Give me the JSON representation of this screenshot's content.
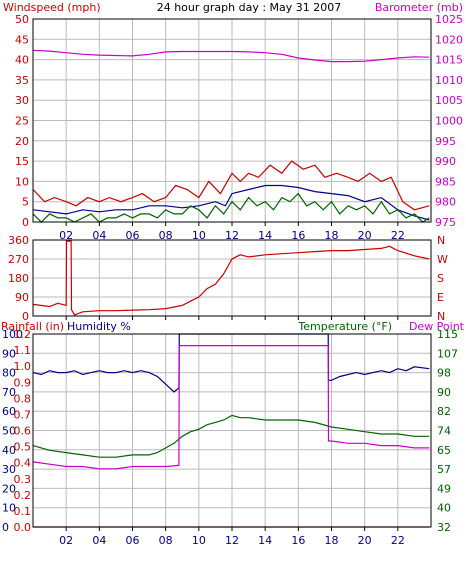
{
  "chart_data": [
    {
      "type": "line",
      "title": "24 hour graph day : May 31 2007",
      "left_axis_label": "Windspeed (mph)",
      "right_axis_label": "Barometer (mb)",
      "colors": {
        "left_axis": "#cc0000",
        "right_axis": "#cc00cc",
        "frame": "#000000",
        "grid": "#bbbbbb"
      },
      "x_range": [
        0,
        24
      ],
      "x_tick_labels": [
        "02",
        "04",
        "06",
        "08",
        "10",
        "12",
        "14",
        "16",
        "18",
        "20",
        "22"
      ],
      "left_ticks": [
        0,
        5,
        10,
        15,
        20,
        25,
        30,
        35,
        40,
        45,
        50
      ],
      "ylim": [
        0,
        50
      ],
      "right_ticks": [
        975,
        980,
        985,
        990,
        995,
        1000,
        1005,
        1010,
        1015,
        1020,
        1025
      ],
      "right_ylim": [
        975,
        1025
      ],
      "series": [
        {
          "axis": "right",
          "color": "#cc00cc",
          "x": [
            0,
            1,
            2,
            3,
            4,
            5,
            6,
            7,
            8,
            9,
            10,
            11,
            12,
            13,
            14,
            15,
            16,
            17,
            18,
            19,
            20,
            21,
            22,
            23,
            23.9
          ],
          "y": [
            1017.3,
            1017.1,
            1016.7,
            1016.3,
            1016.1,
            1016,
            1015.9,
            1016.3,
            1016.9,
            1017,
            1017,
            1017,
            1017,
            1016.9,
            1016.7,
            1016.3,
            1015.4,
            1014.9,
            1014.5,
            1014.5,
            1014.6,
            1015,
            1015.4,
            1015.7,
            1015.6
          ]
        },
        {
          "axis": "left",
          "color": "#cc0000",
          "x": [
            0,
            0.7,
            1.3,
            2,
            2.6,
            3.3,
            4,
            4.6,
            5.3,
            6,
            6.6,
            7.3,
            8,
            8.6,
            9.3,
            10,
            10.6,
            11.3,
            12,
            12.5,
            13,
            13.6,
            14.3,
            15,
            15.6,
            16.3,
            17,
            17.6,
            18.3,
            19,
            19.6,
            20.3,
            21,
            21.6,
            22.3,
            23,
            23.9
          ],
          "y": [
            8,
            5,
            6,
            5,
            4,
            6,
            5,
            6,
            5,
            6,
            7,
            5,
            6,
            9,
            8,
            6,
            10,
            7,
            12,
            10,
            12,
            11,
            14,
            12,
            15,
            13,
            14,
            11,
            12,
            11,
            10,
            12,
            10,
            11,
            5,
            3,
            4
          ]
        },
        {
          "axis": "left",
          "color": "#00008b",
          "x": [
            0,
            1,
            2,
            3,
            4,
            5,
            6,
            7,
            8,
            9,
            10,
            11,
            11.6,
            12,
            13,
            14,
            15,
            16,
            17,
            18,
            19,
            20,
            21,
            22,
            23,
            23.9
          ],
          "y": [
            3,
            2.5,
            2,
            3,
            2.5,
            3,
            3,
            4,
            4,
            3.5,
            4,
            5,
            4,
            7,
            8,
            9,
            9,
            8.5,
            7.5,
            7,
            6.5,
            5,
            6,
            3,
            1.5,
            0.5
          ]
        },
        {
          "axis": "left",
          "color": "#006400",
          "x": [
            0,
            0.5,
            1,
            1.5,
            2,
            2.5,
            3,
            3.5,
            4,
            4.5,
            5,
            5.5,
            6,
            6.5,
            7,
            7.5,
            8,
            8.5,
            9,
            9.5,
            10,
            10.5,
            11,
            11.5,
            12,
            12.5,
            13,
            13.5,
            14,
            14.5,
            15,
            15.5,
            16,
            16.5,
            17,
            17.5,
            18,
            18.5,
            19,
            19.5,
            20,
            20.5,
            21,
            21.5,
            22,
            22.5,
            23,
            23.5,
            23.9
          ],
          "y": [
            2,
            0,
            2,
            1,
            1,
            0,
            1,
            2,
            0,
            1,
            1,
            2,
            1,
            2,
            2,
            1,
            3,
            2,
            2,
            4,
            3,
            1,
            4,
            2,
            5,
            3,
            6,
            4,
            5,
            3,
            6,
            5,
            7,
            4,
            5,
            3,
            5,
            2,
            4,
            3,
            4,
            2,
            5,
            2,
            3,
            1,
            2,
            0,
            1
          ]
        }
      ]
    },
    {
      "type": "line",
      "left_ticks": [
        0,
        90,
        180,
        270,
        360
      ],
      "ylim": [
        0,
        360
      ],
      "right_tick_labels": [
        "N",
        "W",
        "S",
        "E",
        "N"
      ],
      "x_range": [
        0,
        24
      ],
      "colors": {
        "left_axis": "#cc0000",
        "right_axis": "#cc0000",
        "frame": "#000000",
        "grid": "#bbbbbb"
      },
      "series": [
        {
          "color": "#cc0000",
          "x": [
            0,
            1,
            1.5,
            2,
            2.02,
            2.3,
            2.32,
            2.5,
            3,
            4,
            5,
            6,
            7,
            8,
            9,
            9.5,
            10,
            10.5,
            11,
            11.5,
            12,
            12.5,
            13,
            14,
            15,
            16,
            17,
            18,
            19,
            20,
            21,
            21.5,
            22,
            23,
            23.9
          ],
          "y": [
            55,
            45,
            60,
            50,
            355,
            355,
            30,
            5,
            20,
            25,
            25,
            28,
            30,
            35,
            50,
            70,
            90,
            130,
            150,
            200,
            270,
            290,
            280,
            290,
            295,
            300,
            305,
            310,
            310,
            315,
            320,
            330,
            310,
            285,
            270
          ]
        }
      ]
    },
    {
      "type": "line",
      "left_axis_label": "Rainfall (in)",
      "left_axis_label_2": "Humidity %",
      "right_axis_label": "Temperature (°F)",
      "right_axis_label_2": "Dew Point",
      "colors": {
        "rainfall": "#cc0000",
        "humidity": "#00008b",
        "temperature": "#006400",
        "dew_point": "#cc00cc",
        "frame": "#000000",
        "grid": "#bbbbbb"
      },
      "x_range": [
        0,
        24
      ],
      "x_tick_labels": [
        "02",
        "04",
        "06",
        "08",
        "10",
        "12",
        "14",
        "16",
        "18",
        "20",
        "22"
      ],
      "humidity_ticks": [
        "0",
        "10",
        "20",
        "30",
        "40",
        "50",
        "60",
        "70",
        "80",
        "90",
        "100"
      ],
      "rain_ticks": [
        "0.0",
        "0.1",
        "0.2",
        "0.3",
        "0.4",
        "0.5",
        "0.6",
        "0.7",
        "0.8",
        "0.9",
        "1.0",
        "1.1",
        "1.2"
      ],
      "rain_ylim": [
        0,
        1.2
      ],
      "humidity_ylim": [
        0,
        100
      ],
      "temp_ticks": [
        "32",
        "40",
        "49",
        "57",
        "65",
        "74",
        "82",
        "90",
        "98",
        "107",
        "115"
      ],
      "temp_ylim": [
        32,
        115
      ],
      "series": [
        {
          "name": "Humidity %",
          "axis": "humidity",
          "color": "#00008b",
          "x": [
            0,
            0.5,
            1,
            1.5,
            2,
            2.5,
            3,
            3.5,
            4,
            4.5,
            5,
            5.5,
            6,
            6.5,
            7,
            7.5,
            8,
            8.5,
            8.8,
            8.82,
            10,
            12,
            14,
            16,
            17.8,
            17.82,
            18,
            18.5,
            19,
            19.5,
            20,
            20.5,
            21,
            21.5,
            22,
            22.5,
            23,
            23.9
          ],
          "y": [
            80,
            79,
            81,
            80,
            80,
            81,
            79,
            80,
            81,
            80,
            80,
            81,
            80,
            81,
            80,
            78,
            74,
            70,
            72,
            100,
            100,
            100,
            100,
            100,
            100,
            76,
            76,
            78,
            79,
            80,
            79,
            80,
            81,
            80,
            82,
            81,
            83,
            82
          ]
        },
        {
          "name": "Temperature (°F)",
          "axis": "temp",
          "color": "#006400",
          "x": [
            0,
            1,
            2,
            3,
            4,
            5,
            6,
            7,
            7.5,
            8,
            8.5,
            9,
            9.5,
            10,
            10.5,
            11,
            11.5,
            12,
            12.5,
            13,
            14,
            15,
            16,
            17,
            18,
            19,
            20,
            21,
            22,
            23,
            23.9
          ],
          "y": [
            67,
            65,
            64,
            63,
            62,
            62,
            63,
            63,
            64,
            66,
            68,
            71,
            73,
            74,
            76,
            77,
            78,
            80,
            79,
            79,
            78,
            78,
            78,
            77,
            75,
            74,
            73,
            72,
            72,
            71,
            71
          ]
        },
        {
          "name": "Dew Point",
          "axis": "temp",
          "color": "#cc00cc",
          "x": [
            0,
            1,
            2,
            3,
            4,
            5,
            6,
            7,
            8,
            8.8,
            8.82,
            10,
            12,
            14,
            16,
            17.8,
            17.82,
            18,
            19,
            20,
            21,
            22,
            23,
            23.9
          ],
          "y": [
            60,
            59,
            58,
            58,
            57,
            57,
            58,
            58,
            58,
            58.5,
            110,
            110,
            110,
            110,
            110,
            110,
            69,
            69,
            68,
            68,
            67,
            67,
            66,
            66
          ]
        },
        {
          "name": "Rainfall (in)",
          "axis": "rain",
          "color": "#cc0000",
          "x": [
            0,
            23.9
          ],
          "y": [
            0,
            0
          ]
        }
      ]
    }
  ]
}
